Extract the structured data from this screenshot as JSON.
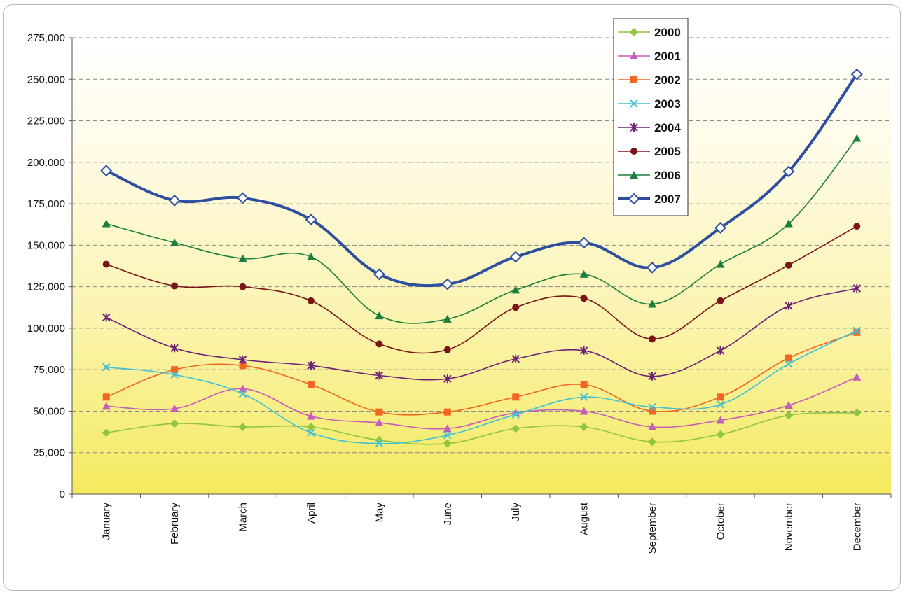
{
  "chart_data": {
    "type": "line",
    "title": "",
    "xlabel": "",
    "ylabel": "",
    "categories": [
      "January",
      "February",
      "March",
      "April",
      "May",
      "June",
      "July",
      "August",
      "September",
      "October",
      "November",
      "December"
    ],
    "ylim": [
      0,
      275000
    ],
    "yticks": [
      0,
      25000,
      50000,
      75000,
      100000,
      125000,
      150000,
      175000,
      200000,
      225000,
      250000,
      275000
    ],
    "ytick_labels": [
      "0",
      "25,000",
      "50,000",
      "75,000",
      "100,000",
      "125,000",
      "150,000",
      "175,000",
      "200,000",
      "225,000",
      "250,000",
      "275,000"
    ],
    "grid": true,
    "legend_position": "top-right",
    "series": [
      {
        "name": "2000",
        "color": "#8dc63f",
        "marker": "diamond",
        "values": [
          37000,
          42500,
          40500,
          40500,
          32500,
          30500,
          39500,
          40500,
          31500,
          36000,
          47500,
          49000
        ]
      },
      {
        "name": "2001",
        "color": "#c55dba",
        "marker": "triangle",
        "values": [
          53000,
          51500,
          63500,
          47000,
          43000,
          39500,
          49000,
          50000,
          40500,
          44500,
          53500,
          70500
        ]
      },
      {
        "name": "2002",
        "color": "#f26522",
        "marker": "square",
        "values": [
          58500,
          75000,
          77500,
          66000,
          49500,
          49500,
          58500,
          66000,
          50000,
          58500,
          82000,
          97500
        ]
      },
      {
        "name": "2003",
        "color": "#41c1d6",
        "marker": "x",
        "values": [
          76500,
          72000,
          60500,
          37000,
          30500,
          35500,
          48000,
          58500,
          52500,
          54000,
          78500,
          98500
        ]
      },
      {
        "name": "2004",
        "color": "#6d2077",
        "marker": "star",
        "values": [
          106500,
          88000,
          81000,
          77500,
          71500,
          69500,
          81500,
          86500,
          71000,
          86500,
          113500,
          124000
        ]
      },
      {
        "name": "2005",
        "color": "#7b1416",
        "marker": "circle",
        "values": [
          138500,
          125500,
          125000,
          116500,
          90500,
          87000,
          112500,
          118000,
          93500,
          116500,
          138000,
          161500
        ]
      },
      {
        "name": "2006",
        "color": "#1a7f3c",
        "marker": "triangle",
        "values": [
          163000,
          151500,
          142000,
          143000,
          107500,
          105500,
          123000,
          132500,
          114500,
          138500,
          163000,
          214500
        ]
      },
      {
        "name": "2007",
        "color": "#2e4e9e",
        "marker": "open-diamond",
        "values": [
          195000,
          177000,
          178500,
          165500,
          132500,
          126500,
          143000,
          151500,
          136500,
          160500,
          194500,
          253000
        ]
      }
    ]
  }
}
